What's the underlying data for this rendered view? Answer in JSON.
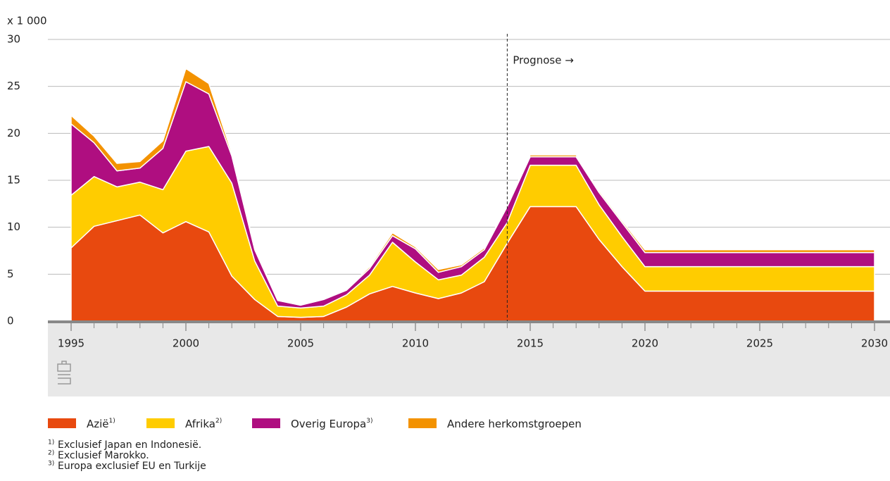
{
  "chart_data": {
    "type": "stacked-area",
    "unit_label": "x 1 000",
    "x": [
      1995,
      1996,
      1997,
      1998,
      1999,
      2000,
      2001,
      2002,
      2003,
      2004,
      2005,
      2006,
      2007,
      2008,
      2009,
      2010,
      2011,
      2012,
      2013,
      2014,
      2015,
      2016,
      2017,
      2018,
      2019,
      2020,
      2021,
      2022,
      2023,
      2024,
      2025,
      2026,
      2027,
      2028,
      2029,
      2030
    ],
    "xlim": [
      1995,
      2030
    ],
    "xticks": [
      1995,
      2000,
      2005,
      2010,
      2015,
      2020,
      2025,
      2030
    ],
    "ylim": [
      0,
      30
    ],
    "yticks": [
      0,
      5,
      10,
      15,
      20,
      25,
      30
    ],
    "grid": true,
    "annotation": {
      "text": "Prognose →",
      "x": 2014
    },
    "series": [
      {
        "name": "Azië",
        "note": "1)",
        "color": "#e8490f",
        "values": [
          7.8,
          10.1,
          10.7,
          11.3,
          9.4,
          10.6,
          9.5,
          4.8,
          2.3,
          0.5,
          0.4,
          0.5,
          1.5,
          2.9,
          3.7,
          3.0,
          2.4,
          3.0,
          4.2,
          8.3,
          12.2,
          12.2,
          12.2,
          8.7,
          5.8,
          3.2,
          3.2,
          3.2,
          3.2,
          3.2,
          3.2,
          3.2,
          3.2,
          3.2,
          3.2,
          3.2
        ]
      },
      {
        "name": "Afrika",
        "note": "2)",
        "color": "#ffcc00",
        "values": [
          5.6,
          5.3,
          3.6,
          3.5,
          4.6,
          7.5,
          9.1,
          9.9,
          4.1,
          1.1,
          1.0,
          1.1,
          1.3,
          2.0,
          4.7,
          3.3,
          2.0,
          1.9,
          2.6,
          2.2,
          4.4,
          4.4,
          4.4,
          3.7,
          3.2,
          2.6,
          2.6,
          2.6,
          2.6,
          2.6,
          2.6,
          2.6,
          2.6,
          2.6,
          2.6,
          2.6
        ]
      },
      {
        "name": "Overig Europa",
        "note": "3)",
        "color": "#af0e80",
        "values": [
          7.6,
          3.6,
          1.7,
          1.5,
          4.4,
          7.4,
          5.6,
          2.9,
          1.2,
          0.6,
          0.3,
          0.7,
          0.5,
          0.7,
          0.7,
          1.4,
          0.8,
          0.9,
          0.8,
          1.7,
          0.9,
          0.9,
          0.9,
          1.3,
          1.5,
          1.5,
          1.5,
          1.5,
          1.5,
          1.5,
          1.5,
          1.5,
          1.5,
          1.5,
          1.5,
          1.5
        ]
      },
      {
        "name": "Andere herkomstgroepen",
        "color": "#f39200",
        "values": [
          0.9,
          0.7,
          0.8,
          0.7,
          0.8,
          1.4,
          1.1,
          0.3,
          0.2,
          0.1,
          0.1,
          0.1,
          0.1,
          0.2,
          0.3,
          0.2,
          0.3,
          0.2,
          0.2,
          0.1,
          0.2,
          0.2,
          0.2,
          0.2,
          0.2,
          0.3,
          0.3,
          0.3,
          0.3,
          0.3,
          0.3,
          0.3,
          0.3,
          0.3,
          0.3,
          0.3
        ]
      }
    ],
    "footnotes": [
      {
        "mark": "1)",
        "text": "Exclusief Japan en Indonesië."
      },
      {
        "mark": "2)",
        "text": "Exclusief Marokko."
      },
      {
        "mark": "3)",
        "text": "Europa exclusief EU en Turkije"
      }
    ]
  }
}
